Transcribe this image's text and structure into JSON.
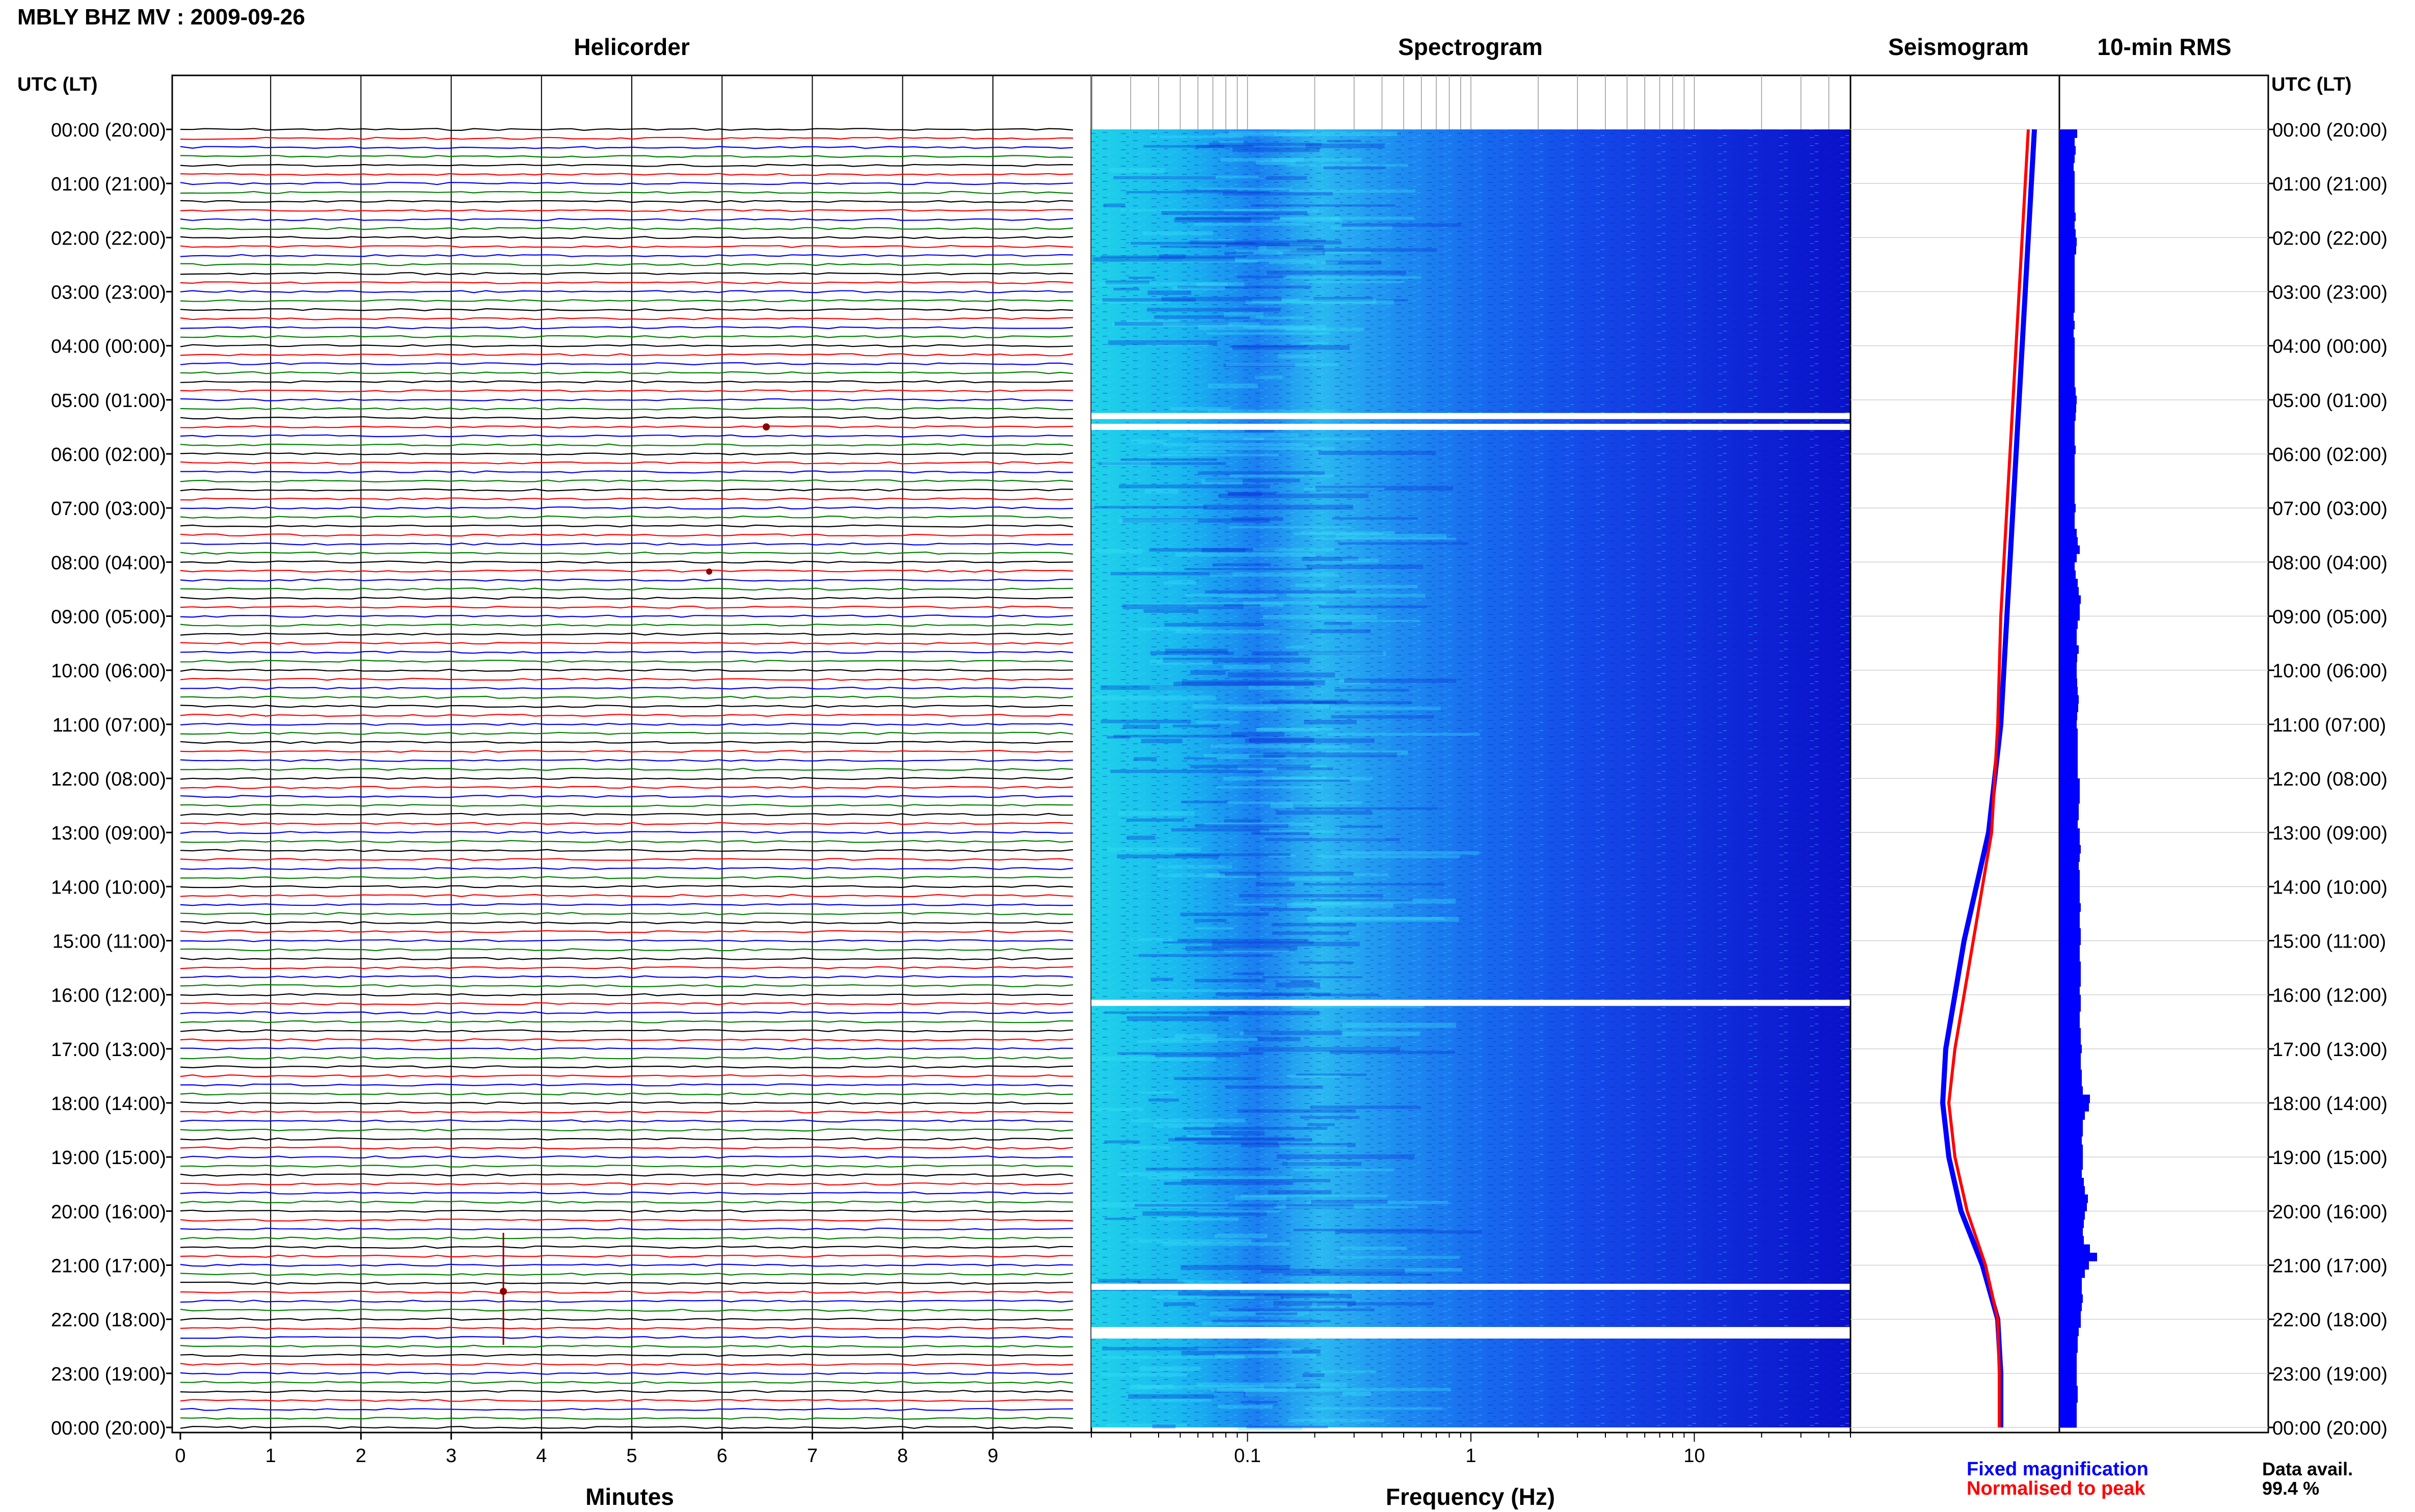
{
  "header": {
    "title": "MBLY BHZ MV : 2009-09-26"
  },
  "panels": {
    "helicorder": "Helicorder",
    "spectrogram": "Spectrogram",
    "seismogram": "Seismogram",
    "rms": "10-min RMS"
  },
  "axes": {
    "left_header": "UTC (LT)",
    "right_header": "UTC (LT)",
    "minutes_label": "Minutes",
    "frequency_label": "Frequency (Hz)"
  },
  "legend": {
    "fixed": "Fixed magnification",
    "normalised": "Normalised to peak",
    "fixed_color": "#0000ff",
    "normalised_color": "#ff0000"
  },
  "data_avail": {
    "label": "Data avail.",
    "value": "99.4 %"
  },
  "chart_data": {
    "type": "helicorder",
    "hour_labels": [
      "00:00 (20:00)",
      "01:00 (21:00)",
      "02:00 (22:00)",
      "03:00 (23:00)",
      "04:00 (00:00)",
      "05:00 (01:00)",
      "06:00 (02:00)",
      "07:00 (03:00)",
      "08:00 (04:00)",
      "09:00 (05:00)",
      "10:00 (06:00)",
      "11:00 (07:00)",
      "12:00 (08:00)",
      "13:00 (09:00)",
      "14:00 (10:00)",
      "15:00 (11:00)",
      "16:00 (12:00)",
      "17:00 (13:00)",
      "18:00 (14:00)",
      "19:00 (15:00)",
      "20:00 (16:00)",
      "21:00 (17:00)",
      "22:00 (18:00)",
      "23:00 (19:00)",
      "00:00 (20:00)"
    ],
    "minute_ticks": [
      "0",
      "1",
      "2",
      "3",
      "4",
      "5",
      "6",
      "7",
      "8",
      "9"
    ],
    "trace_colors": [
      "#000000",
      "#ff0000",
      "#0000ff",
      "#008000"
    ],
    "traces_per_hour": 6,
    "frequency_ticks": [
      "0.1",
      "1",
      "10"
    ],
    "frequency_range_hz": [
      0.02,
      50
    ],
    "spectrogram_gaps_utc_hours": [
      5.3,
      5.5,
      16.15,
      21.4,
      22.2,
      22.3
    ],
    "rms_scale_note": "",
    "seismogram_fixed": [
      [
        0,
        0.52
      ],
      [
        1,
        0.5
      ],
      [
        2,
        0.48
      ],
      [
        3,
        0.46
      ],
      [
        4,
        0.44
      ],
      [
        5,
        0.42
      ],
      [
        6,
        0.4
      ],
      [
        7,
        0.38
      ],
      [
        8,
        0.36
      ],
      [
        9,
        0.34
      ],
      [
        10,
        0.32
      ],
      [
        11,
        0.3
      ],
      [
        12,
        0.26
      ],
      [
        13,
        0.22
      ],
      [
        14,
        0.14
      ],
      [
        15,
        0.06
      ],
      [
        16,
        0.0
      ],
      [
        17,
        -0.06
      ],
      [
        18,
        -0.08
      ],
      [
        19,
        -0.04
      ],
      [
        20,
        0.04
      ],
      [
        21,
        0.18
      ],
      [
        22,
        0.28
      ],
      [
        23,
        0.3
      ],
      [
        24,
        0.3
      ]
    ],
    "seismogram_normalised": [
      [
        0,
        0.48
      ],
      [
        1,
        0.46
      ],
      [
        2,
        0.44
      ],
      [
        3,
        0.42
      ],
      [
        4,
        0.4
      ],
      [
        5,
        0.38
      ],
      [
        6,
        0.36
      ],
      [
        7,
        0.34
      ],
      [
        8,
        0.32
      ],
      [
        9,
        0.3
      ],
      [
        10,
        0.29
      ],
      [
        11,
        0.28
      ],
      [
        12,
        0.26
      ],
      [
        13,
        0.24
      ],
      [
        14,
        0.18
      ],
      [
        15,
        0.12
      ],
      [
        16,
        0.06
      ],
      [
        17,
        0.0
      ],
      [
        18,
        -0.04
      ],
      [
        19,
        0.0
      ],
      [
        20,
        0.08
      ],
      [
        21,
        0.2
      ],
      [
        22,
        0.28
      ],
      [
        23,
        0.29
      ],
      [
        24,
        0.29
      ]
    ],
    "rms_10min": [
      0.35,
      0.3,
      0.32,
      0.3,
      0.28,
      0.3,
      0.3,
      0.3,
      0.3,
      0.3,
      0.32,
      0.3,
      0.32,
      0.34,
      0.33,
      0.3,
      0.3,
      0.3,
      0.3,
      0.3,
      0.3,
      0.3,
      0.28,
      0.3,
      0.28,
      0.3,
      0.3,
      0.3,
      0.3,
      0.3,
      0.3,
      0.32,
      0.34,
      0.33,
      0.32,
      0.3,
      0.3,
      0.3,
      0.32,
      0.3,
      0.3,
      0.3,
      0.3,
      0.3,
      0.3,
      0.32,
      0.3,
      0.3,
      0.34,
      0.36,
      0.4,
      0.34,
      0.3,
      0.32,
      0.36,
      0.38,
      0.42,
      0.4,
      0.4,
      0.36,
      0.34,
      0.34,
      0.38,
      0.35,
      0.34,
      0.34,
      0.35,
      0.36,
      0.38,
      0.37,
      0.35,
      0.34,
      0.36,
      0.36,
      0.36,
      0.36,
      0.36,
      0.36,
      0.4,
      0.4,
      0.4,
      0.38,
      0.38,
      0.36,
      0.4,
      0.4,
      0.42,
      0.4,
      0.38,
      0.4,
      0.4,
      0.4,
      0.4,
      0.42,
      0.4,
      0.4,
      0.42,
      0.42,
      0.4,
      0.4,
      0.42,
      0.42,
      0.42,
      0.4,
      0.42,
      0.42,
      0.4,
      0.4,
      0.42,
      0.42,
      0.44,
      0.42,
      0.42,
      0.44,
      0.44,
      0.46,
      0.6,
      0.58,
      0.5,
      0.46,
      0.46,
      0.44,
      0.46,
      0.46,
      0.46,
      0.44,
      0.48,
      0.5,
      0.56,
      0.54,
      0.5,
      0.48,
      0.46,
      0.48,
      0.6,
      0.74,
      0.58,
      0.5,
      0.44,
      0.44,
      0.46,
      0.44,
      0.42,
      0.42,
      0.38,
      0.36,
      0.36,
      0.34,
      0.34,
      0.34,
      0.34,
      0.36,
      0.36,
      0.34,
      0.34,
      0.34
    ]
  }
}
